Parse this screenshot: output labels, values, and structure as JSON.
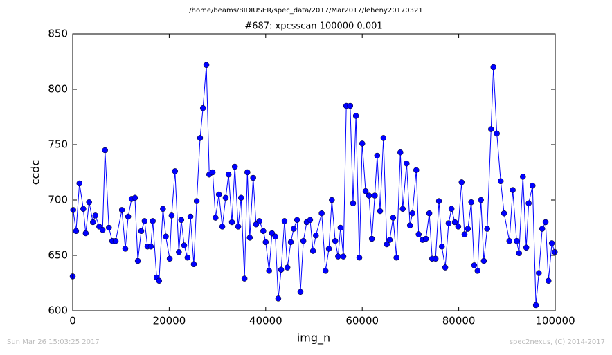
{
  "chart_data": {
    "type": "line",
    "path_title": "/home/beams/8IDIUSER/spec_data/2017/Mar2017/leheny20170321",
    "title": "#687: xpcsscan 100000 0.001",
    "xlabel": "img_n",
    "ylabel": "ccdc",
    "footer_left": "Sun Mar 26 15:03:25 2017",
    "footer_right": "spec2nexus, (C) 2014-2017",
    "x": [
      0,
      100,
      700,
      1400,
      2200,
      2700,
      3400,
      4200,
      4700,
      5500,
      6200,
      6700,
      7500,
      8200,
      8900,
      10200,
      10900,
      11500,
      12200,
      12900,
      13500,
      14200,
      14900,
      15500,
      16200,
      16600,
      17400,
      17900,
      18700,
      19300,
      20100,
      20500,
      21200,
      22000,
      22500,
      23100,
      23800,
      24400,
      25100,
      25700,
      26400,
      27000,
      27700,
      28300,
      29000,
      29600,
      30300,
      31000,
      31700,
      32300,
      33000,
      33600,
      34300,
      34900,
      35600,
      36200,
      36700,
      37400,
      38000,
      38700,
      39500,
      40000,
      40700,
      41300,
      42000,
      42600,
      43200,
      43900,
      44500,
      45200,
      45800,
      46500,
      47200,
      47800,
      48500,
      49200,
      49800,
      50400,
      51600,
      52400,
      53100,
      53700,
      54400,
      55000,
      55500,
      56100,
      56700,
      57500,
      58100,
      58700,
      59400,
      60000,
      60700,
      61400,
      62000,
      62600,
      63100,
      63700,
      64400,
      65100,
      65700,
      66400,
      67100,
      67900,
      68400,
      69200,
      69900,
      70400,
      71200,
      71700,
      72500,
      73200,
      73900,
      74500,
      75200,
      75900,
      76500,
      77200,
      77900,
      78500,
      79200,
      79900,
      80600,
      81200,
      81900,
      82600,
      83200,
      83900,
      84600,
      85200,
      85900,
      86700,
      87200,
      87900,
      88700,
      89400,
      90500,
      91200,
      92000,
      92500,
      93300,
      94000,
      94500,
      95300,
      96000,
      96600,
      97300,
      98000,
      98600,
      99300,
      99900
    ],
    "series": [
      {
        "color": "#0000ff",
        "values": [
          631,
          691,
          672,
          715,
          692,
          670,
          698,
          680,
          686,
          676,
          673,
          745,
          675,
          663,
          663,
          691,
          656,
          685,
          701,
          702,
          645,
          672,
          681,
          658,
          658,
          681,
          630,
          627,
          692,
          667,
          647,
          686,
          726,
          653,
          682,
          659,
          648,
          685,
          642,
          699,
          756,
          783,
          822,
          723,
          725,
          684,
          705,
          676,
          702,
          723,
          680,
          730,
          676,
          702,
          629,
          725,
          666,
          720,
          678,
          681,
          672,
          662,
          636,
          670,
          667,
          611,
          637,
          681,
          639,
          662,
          674,
          682,
          617,
          663,
          680,
          682,
          654,
          668,
          688,
          636,
          656,
          700,
          663,
          649,
          675,
          649,
          785,
          785,
          697,
          776,
          648,
          751,
          708,
          704,
          665,
          704,
          740,
          690,
          756,
          660,
          664,
          684,
          648,
          743,
          692,
          733,
          677,
          688,
          727,
          669,
          664,
          665,
          688,
          647,
          647,
          699,
          658,
          639,
          679,
          692,
          680,
          676,
          716,
          669,
          674,
          698,
          641,
          636,
          700,
          645,
          674,
          764,
          820,
          760,
          717,
          688,
          663,
          709,
          663,
          652,
          721,
          657,
          697,
          713,
          605,
          634,
          674,
          680,
          627,
          661,
          653
        ]
      }
    ],
    "xlim": [
      0,
      100000
    ],
    "xticks": [
      0,
      20000,
      40000,
      60000,
      80000,
      100000
    ],
    "ylim": [
      600,
      850
    ],
    "yticks": [
      600,
      650,
      700,
      750,
      800,
      850
    ]
  }
}
